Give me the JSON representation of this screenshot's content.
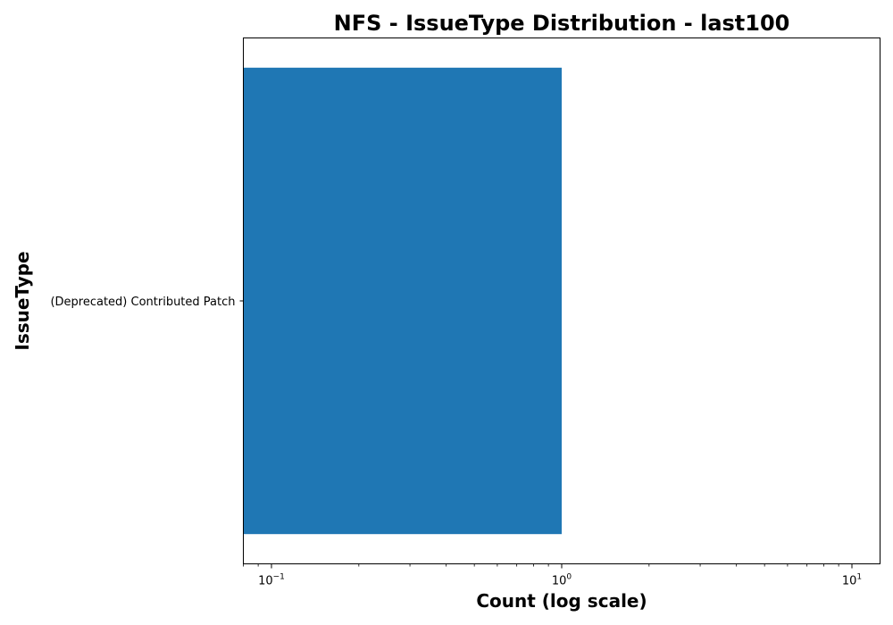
{
  "chart_data": {
    "type": "bar",
    "orientation": "horizontal",
    "title": "NFS - IssueType Distribution - last100",
    "xlabel": "Count (log scale)",
    "ylabel": "IssueType",
    "x_scale": "log",
    "xlim": [
      0.08,
      12.5
    ],
    "x_ticks": [
      {
        "value": 0.1,
        "base": "10",
        "exp": "−1"
      },
      {
        "value": 1,
        "base": "10",
        "exp": "0"
      },
      {
        "value": 10,
        "base": "10",
        "exp": "1"
      }
    ],
    "categories": [
      "(Deprecated) Contributed Patch"
    ],
    "values": [
      1
    ],
    "bar_color": "#1f77b4",
    "grid": false,
    "legend": "none"
  }
}
